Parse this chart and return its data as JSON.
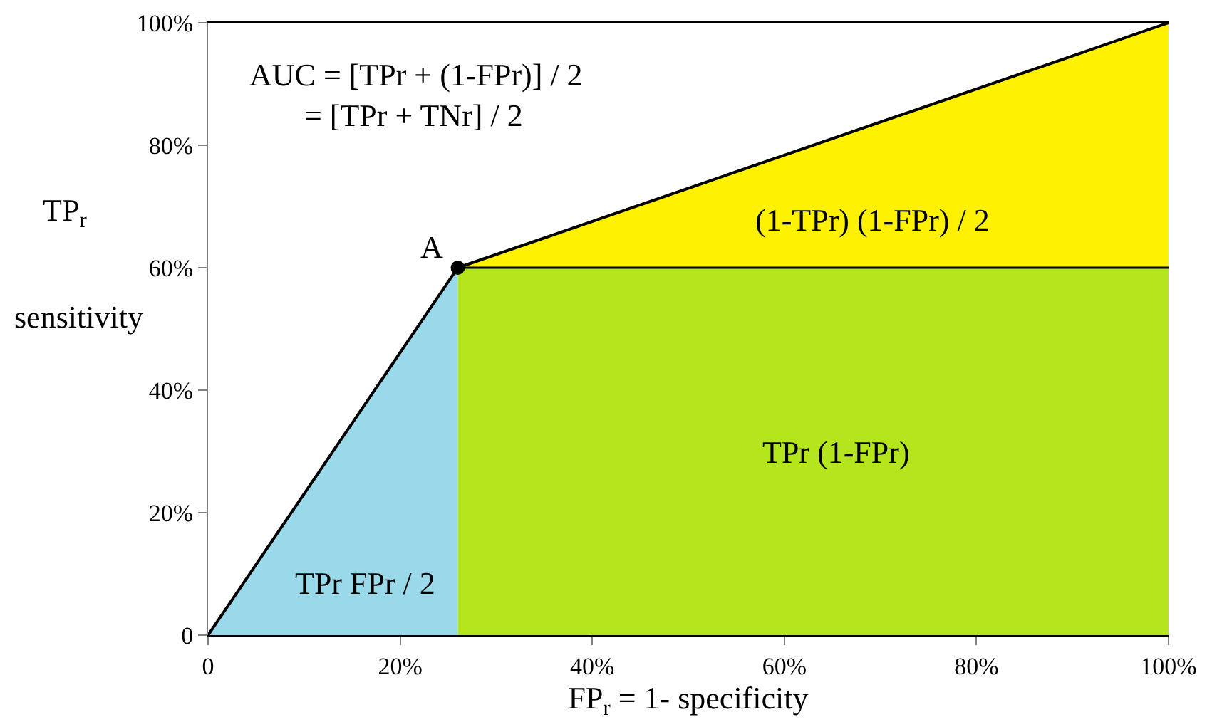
{
  "chart_data": {
    "type": "line",
    "xlabel": "FP$_{r}$ = 1- specificity",
    "ylabel": "TP$_{r}$\nsensitivity",
    "xlim": [
      0,
      100
    ],
    "ylim": [
      0,
      100
    ],
    "xticks": [
      {
        "value": 0,
        "label": "0"
      },
      {
        "value": 20,
        "label": "20%"
      },
      {
        "value": 40,
        "label": "40%"
      },
      {
        "value": 60,
        "label": "60%"
      },
      {
        "value": 80,
        "label": "80%"
      },
      {
        "value": 100,
        "label": "100%"
      }
    ],
    "yticks": [
      {
        "value": 0,
        "label": "0"
      },
      {
        "value": 20,
        "label": "20%"
      },
      {
        "value": 40,
        "label": "40%"
      },
      {
        "value": 60,
        "label": "60%"
      },
      {
        "value": 80,
        "label": "80%"
      },
      {
        "value": 100,
        "label": "100%"
      }
    ],
    "series": [
      {
        "type": "area",
        "color": "#fff200",
        "x": [
          26,
          100
        ],
        "values": [
          60,
          100
        ]
      },
      {
        "type": "area",
        "color": "#b5e61d",
        "x": [
          26,
          100
        ],
        "values": [
          60,
          60
        ]
      },
      {
        "type": "area",
        "color": "#99d9ea",
        "x": [
          0,
          26
        ],
        "values": [
          0,
          60
        ]
      },
      {
        "color": "#000000",
        "x": [
          0,
          26,
          100
        ],
        "values": [
          0,
          60,
          100
        ],
        "marker": "none",
        "line_style": "solid"
      },
      {
        "type": "scatter",
        "color": "#000000",
        "x": [
          26
        ],
        "values": [
          60
        ],
        "marker": "circle"
      }
    ],
    "annotations": [
      "AUC = [TPr + (1-FPr)] / 2\n       = [TPr + TNr] / 2",
      {
        "text": "A",
        "x": 26,
        "y": 60
      },
      "TPr FPr / 2",
      "TPr (1-FPr)",
      "(1-TPr) (1-FPr) / 2"
    ]
  }
}
